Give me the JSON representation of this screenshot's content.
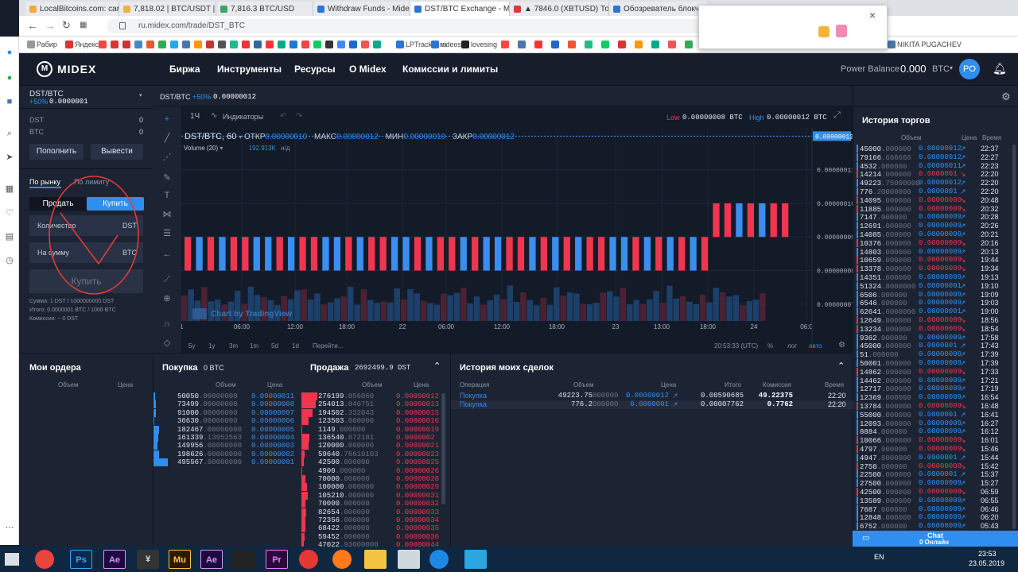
{
  "browser": {
    "tabs": [
      {
        "title": "LocalBitcoins.com: самый",
        "color": "#f2a93b"
      },
      {
        "title": "7,818.02 | BTC/USDT | Ку",
        "color": "#e8b53f"
      },
      {
        "title": "7,816.3 BTC/USD",
        "color": "#3aa56b"
      },
      {
        "title": "Withdraw Funds - Midex",
        "color": "#2b76d6"
      },
      {
        "title": "DST/BTC Exchange - Mid",
        "color": "#2b76d6"
      },
      {
        "title": "▲ 7846.0 (XBTUSD) Торг",
        "color": "#d83b3b"
      },
      {
        "title": "Обозреватель блокчей",
        "color": "#2b76d6"
      }
    ],
    "url": "ru.midex.com/trade/DST_BTC",
    "bookmarks": [
      "Рабир",
      "Яндекс",
      "LPTracker.ru",
      "videosel",
      "lovesing",
      "NIKITA PUGACHEV"
    ],
    "popup_close": "×"
  },
  "header": {
    "logo": "MIDEX",
    "nav": [
      "Биржа",
      "Инструменты",
      "Ресурсы",
      "О Midex",
      "Комиссии и лимиты"
    ],
    "power_label": "Power Balance",
    "power_value": "0.000",
    "power_unit": "BTC",
    "avatar": "PO"
  },
  "left": {
    "pair": "DST/BTC",
    "change": "+50%",
    "price": "0.0000001",
    "bal_dst_label": "DST",
    "bal_dst": "0",
    "bal_btc_label": "BTC",
    "bal_btc": "0",
    "deposit": "Пополнить",
    "withdraw": "Вывести",
    "tab_market": "По рынку",
    "tab_limit": "По лимиту",
    "sell": "Продать",
    "buy": "Купить",
    "qty_label": "Количество",
    "qty_unit": "DST",
    "sum_label": "На сумму",
    "sum_unit": "BTC",
    "submit": "Купить",
    "sum_line": "Сумма: 1 DST / 1000000000 DST",
    "total_line": "Итого: 0.0000001 BTC / 1000 BTC",
    "fee_line": "Комиссия: ~ 0 DST"
  },
  "chart_header": {
    "pair": "DST/BTC",
    "change": "+50%",
    "price": "0.00000012"
  },
  "chart_toolbar": {
    "interval": "1Ч",
    "indicators": "Индикаторы",
    "low_label": "Low",
    "low": "0.00000008 BTC",
    "high_label": "High",
    "high": "0.00000012 BTC"
  },
  "chart_legend": {
    "symbol": "DST/BTC, 60",
    "o_label": "ОТКР",
    "o": "0.00000010",
    "h_label": "МАКС",
    "h": "0.00000012",
    "l_label": "МИН",
    "l": "0.00000010",
    "c_label": "ЗАКР",
    "c": "0.00000012",
    "volume_label": "Volume (20)",
    "volume_value": "192.913K",
    "volume_na": "н/д"
  },
  "chart_watermark": "Chart by TradingView",
  "chart_bottom": {
    "ranges": [
      "5y",
      "1y",
      "3m",
      "1m",
      "5d",
      "1d",
      "Перейти..."
    ],
    "time": "20:53:33 (UTC)",
    "pct": "%",
    "log": "лог",
    "auto": "авто"
  },
  "chart_data": {
    "type": "candlestick",
    "y_ticks": [
      "0.00000012",
      "0.00000011",
      "0.00000010",
      "0.00000009",
      "0.00000008",
      "0.00000007"
    ],
    "last_price": "0.00000012",
    "x_ticks": [
      "21",
      "06:00",
      "12:00",
      "18:00",
      "22",
      "06:00",
      "12:00",
      "18:00",
      "23",
      "13:00",
      "18:00",
      "24",
      "06:0"
    ],
    "ylim": [
      6.5e-08,
      1.215e-07
    ],
    "candles": [
      [
        9,
        8,
        0
      ],
      [
        9,
        8,
        1
      ],
      [
        9,
        8,
        0
      ],
      [
        9,
        8,
        1
      ],
      [
        9,
        8,
        0
      ],
      [
        9,
        8,
        0
      ],
      [
        9,
        8,
        1
      ],
      [
        9,
        8,
        1
      ],
      [
        8,
        9,
        0
      ],
      [
        9,
        8,
        1
      ],
      [
        9,
        8,
        0
      ],
      [
        9,
        8,
        0
      ],
      [
        9,
        8,
        1
      ],
      [
        8,
        9,
        1
      ],
      [
        9,
        8,
        0
      ],
      [
        9,
        8,
        1
      ],
      [
        9,
        8,
        0
      ],
      [
        8,
        9,
        0
      ],
      [
        9,
        8,
        1
      ],
      [
        9,
        8,
        1
      ],
      [
        9,
        8,
        0
      ],
      [
        9,
        8,
        1
      ],
      [
        9,
        8,
        0
      ],
      [
        9,
        8,
        0
      ],
      [
        8,
        9,
        1
      ],
      [
        9,
        8,
        0
      ],
      [
        9,
        8,
        1
      ],
      [
        9,
        8,
        1
      ],
      [
        9,
        8,
        0
      ],
      [
        9,
        8,
        0
      ],
      [
        9,
        8,
        1
      ],
      [
        8,
        9,
        0
      ],
      [
        9,
        8,
        1
      ],
      [
        9,
        8,
        0
      ],
      [
        9,
        8,
        1
      ],
      [
        9,
        8,
        0
      ],
      [
        9,
        8,
        0
      ],
      [
        9,
        8,
        1
      ],
      [
        9,
        8,
        1
      ],
      [
        9,
        8,
        0
      ],
      [
        9,
        8,
        1
      ],
      [
        9,
        8,
        0
      ],
      [
        9,
        8,
        1
      ],
      [
        9,
        8,
        0
      ],
      [
        9,
        8,
        1
      ],
      [
        9,
        8,
        0
      ],
      [
        10,
        9,
        0
      ],
      [
        10,
        9,
        0
      ],
      [
        10,
        9,
        1
      ],
      [
        9,
        10,
        0
      ],
      [
        10,
        9,
        1
      ],
      [
        9,
        10,
        0
      ],
      [
        10,
        9,
        0
      ],
      [
        9,
        10,
        1
      ],
      [
        12,
        10,
        0
      ]
    ]
  },
  "orders": {
    "title": "Мои ордера",
    "col_vol": "Объем",
    "col_price": "Цена"
  },
  "orderbook": {
    "buy_title": "Покупка",
    "buy_unit": "0 BTC",
    "sell_title": "Продажа",
    "sell_total": "2692499.9 DST",
    "col_vol": "Объем",
    "col_price": "Цена",
    "bids": [
      [
        "50050",
        ".00000000",
        "0.00000011",
        0.1
      ],
      [
        "73499",
        ".00000000",
        "0.00000008",
        0.15
      ],
      [
        "91000",
        ".00000000",
        "0.00000007",
        0.18
      ],
      [
        "36630",
        ".00000000",
        "0.00000006",
        0.07
      ],
      [
        "182467",
        ".00000000",
        "0.00000005",
        0.37
      ],
      [
        "161339",
        ".13952563",
        "0.00000004",
        0.33
      ],
      [
        "149956",
        ".00000000",
        "0.00000003",
        0.3
      ],
      [
        "198626",
        ".00000000",
        "0.00000002",
        0.4
      ],
      [
        "495567",
        ".00000000",
        "0.00000001",
        1.0
      ]
    ],
    "asks": [
      [
        "276199",
        ".856060",
        "0.00000012",
        1.0
      ],
      [
        "254013",
        ".840751",
        "0.00000013",
        0.92
      ],
      [
        "194502",
        ".332043",
        "0.00000015",
        0.7
      ],
      [
        "123503",
        ".000000",
        "0.00000016",
        0.45
      ],
      [
        "1149",
        ".000000",
        "0.00000019",
        0.03
      ],
      [
        "136540",
        ".672181",
        "0.0000002",
        0.5
      ],
      [
        "120000",
        ".000000",
        "0.00000021",
        0.44
      ],
      [
        "59640",
        ".76610103",
        "0.00000023",
        0.22
      ],
      [
        "42500",
        ".000000",
        "0.00000025",
        0.15
      ],
      [
        "4900",
        ".000000",
        "0.00000026",
        0.03
      ],
      [
        "70000",
        ".000000",
        "0.00000028",
        0.25
      ],
      [
        "100000",
        ".000000",
        "0.00000029",
        0.36
      ],
      [
        "105210",
        ".000000",
        "0.00000031",
        0.38
      ],
      [
        "70000",
        ".000000",
        "0.00000032",
        0.25
      ],
      [
        "82654",
        ".000000",
        "0.00000033",
        0.3
      ],
      [
        "72356",
        ".000000",
        "0.00000034",
        0.26
      ],
      [
        "68422",
        ".000000",
        "0.00000035",
        0.25
      ],
      [
        "59452",
        ".000000",
        "0.00000036",
        0.22
      ],
      [
        "47022",
        ".93000000",
        "0.00000044",
        0.17
      ]
    ]
  },
  "my_trades": {
    "title": "История моих сделок",
    "cols": [
      "Операция",
      "Объем",
      "Цена",
      "Итого",
      "Комиссия",
      "Время"
    ],
    "rows": [
      [
        "Покупка",
        "49223.75",
        "000000",
        "0.00000012",
        "0.00590685",
        "49.22375",
        "22:20"
      ],
      [
        "Покупка",
        "776.2",
        "000000",
        "0.0000001",
        "0.00007762",
        "0.7762",
        "22:20"
      ]
    ]
  },
  "trade_history": {
    "title": "История торгов",
    "cols": [
      "Объем",
      "Цена",
      "Время"
    ],
    "rows": [
      [
        "45000",
        ".000000",
        "0.00000012",
        "b",
        "22:37"
      ],
      [
        "79166",
        ".666666",
        "0.00000012",
        "b",
        "22:27"
      ],
      [
        "4532",
        ".000000",
        "0.00000011",
        "b",
        "22:23"
      ],
      [
        "14214",
        ".000000",
        "0.0000001",
        "s",
        "22:20"
      ],
      [
        "49223",
        ".75000000",
        "0.00000012",
        "b",
        "22:20"
      ],
      [
        "776",
        ".20000000",
        "0.0000001",
        "b",
        "22:20"
      ],
      [
        "14095",
        ".000000",
        "0.00000009",
        "s",
        "20:48"
      ],
      [
        "11885",
        ".000000",
        "0.00000009",
        "s",
        "20:32"
      ],
      [
        "7147",
        ".000000",
        "0.00000009",
        "b",
        "20:28"
      ],
      [
        "12691",
        ".000000",
        "0.00000009",
        "b",
        "20:26"
      ],
      [
        "14085",
        ".000000",
        "0.00000009",
        "b",
        "20:21"
      ],
      [
        "10376",
        ".000000",
        "0.00000009",
        "s",
        "20:16"
      ],
      [
        "14803",
        ".000000",
        "0.00000009",
        "b",
        "20:13"
      ],
      [
        "10659",
        ".000000",
        "0.00000009",
        "s",
        "19:44"
      ],
      [
        "13378",
        ".000000",
        "0.00000009",
        "s",
        "19:34"
      ],
      [
        "14351",
        ".000000",
        "0.00000009",
        "b",
        "19:13"
      ],
      [
        "51324",
        ".8000000",
        "0.00000001",
        "b",
        "19:10"
      ],
      [
        "6506",
        ".000000",
        "0.00000009",
        "b",
        "19:09"
      ],
      [
        "6546",
        ".000000",
        "0.00000009",
        "b",
        "19:03"
      ],
      [
        "62641",
        ".6000000",
        "0.00000001",
        "b",
        "19:00"
      ],
      [
        "12649",
        ".000000",
        "0.00000009",
        "s",
        "18:56"
      ],
      [
        "13234",
        ".000000",
        "0.00000009",
        "s",
        "18:54"
      ],
      [
        "9362",
        ".000000",
        "0.00000009",
        "b",
        "17:58"
      ],
      [
        "45000",
        ".000000",
        "0.0000001",
        "b",
        "17:43"
      ],
      [
        "51",
        ".000000",
        "0.00000009",
        "b",
        "17:39"
      ],
      [
        "50001",
        ".000000",
        "0.00000009",
        "b",
        "17:39"
      ],
      [
        "14862",
        ".000000",
        "0.00000009",
        "s",
        "17:33"
      ],
      [
        "14462",
        ".000000",
        "0.00000009",
        "b",
        "17:21"
      ],
      [
        "12717",
        ".000000",
        "0.00000009",
        "b",
        "17:19"
      ],
      [
        "12369",
        ".000000",
        "0.00000009",
        "b",
        "16:54"
      ],
      [
        "13784",
        ".000000",
        "0.00000009",
        "s",
        "16:48"
      ],
      [
        "55000",
        ".000000",
        "0.0000001",
        "b",
        "16:41"
      ],
      [
        "12093",
        ".000000",
        "0.00000009",
        "b",
        "16:27"
      ],
      [
        "8884",
        ".000000",
        "0.00000009",
        "b",
        "16:12"
      ],
      [
        "10066",
        ".000000",
        "0.00000009",
        "s",
        "16:01"
      ],
      [
        "4797",
        ".000000",
        "0.00000009",
        "s",
        "15:46"
      ],
      [
        "4947",
        ".8000000",
        "0.0000001",
        "b",
        "15:44"
      ],
      [
        "2750",
        ".000000",
        "0.00000008",
        "s",
        "15:42"
      ],
      [
        "22500",
        ".000000",
        "0.0000001",
        "b",
        "15:37"
      ],
      [
        "27500",
        ".000000",
        "0.00000009",
        "b",
        "15:27"
      ],
      [
        "42500",
        ".000000",
        "0.00000008",
        "s",
        "06:59"
      ],
      [
        "13589",
        ".000000",
        "0.00000009",
        "b",
        "06:55"
      ],
      [
        "7687",
        ".000000",
        "0.00000009",
        "b",
        "06:46"
      ],
      [
        "12848",
        ".000000",
        "0.00000009",
        "b",
        "06:20"
      ],
      [
        "6752",
        ".000000",
        "0.00000009",
        "b",
        "05:43"
      ]
    ]
  },
  "chat": {
    "label": "Chat",
    "online": "0 Онлайн"
  },
  "taskbar": {
    "lang": "EN",
    "time": "23:53",
    "date": "23.05.2019",
    "apps": [
      "Ps",
      "Ae",
      "Mu",
      "Ae",
      "Pr"
    ]
  }
}
